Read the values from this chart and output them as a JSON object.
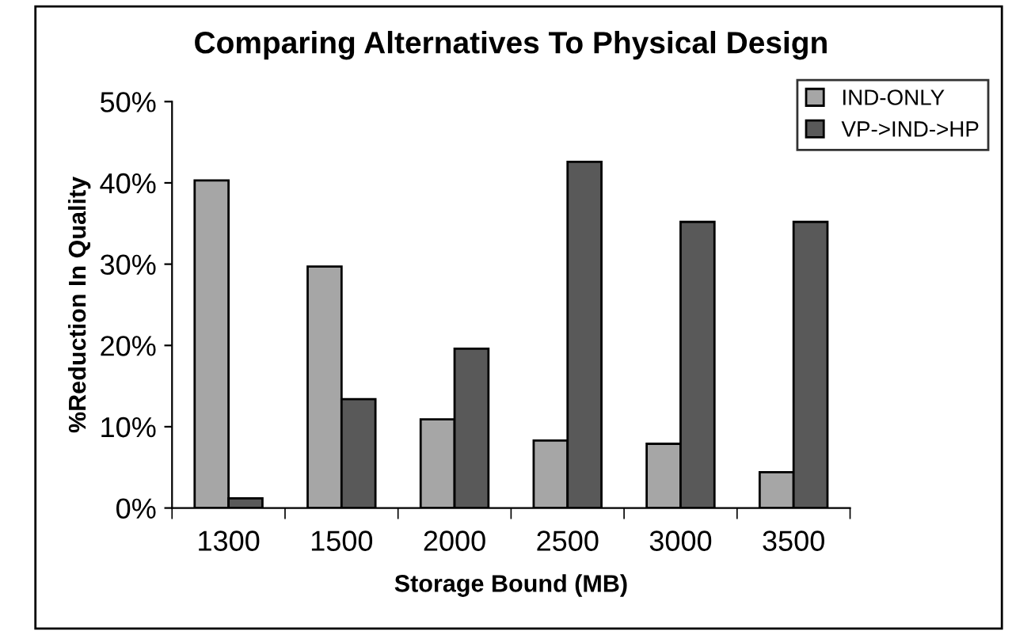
{
  "chart_data": {
    "type": "bar",
    "title": "Comparing Alternatives To Physical Design",
    "xlabel": "Storage Bound (MB)",
    "ylabel": "%Reduction In Quality",
    "categories": [
      "1300",
      "1500",
      "2000",
      "2500",
      "3000",
      "3500"
    ],
    "series": [
      {
        "name": "IND-ONLY",
        "color": "#a6a6a6",
        "values": [
          40.3,
          29.7,
          10.9,
          8.3,
          7.9,
          4.4
        ]
      },
      {
        "name": "VP->IND->HP",
        "color": "#595959",
        "values": [
          1.2,
          13.4,
          19.6,
          42.6,
          35.2,
          35.2
        ]
      }
    ],
    "ylim": [
      0,
      50
    ],
    "yticks": [
      {
        "value": 0,
        "label": "0%"
      },
      {
        "value": 10,
        "label": "10%"
      },
      {
        "value": 20,
        "label": "20%"
      },
      {
        "value": 30,
        "label": "30%"
      },
      {
        "value": 40,
        "label": "40%"
      },
      {
        "value": 50,
        "label": "50%"
      }
    ],
    "grid": false,
    "legend": "top right"
  }
}
